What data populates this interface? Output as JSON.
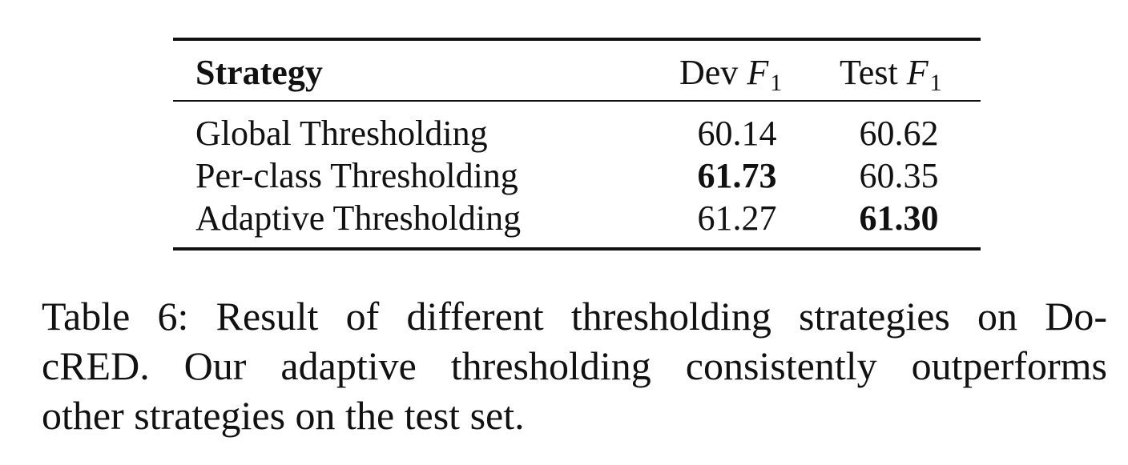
{
  "table": {
    "header": {
      "strategy": "Strategy",
      "dev_prefix": "Dev ",
      "test_prefix": "Test ",
      "f_symbol": "F",
      "f_subscript": "1"
    },
    "rows": [
      {
        "strategy": "Global Thresholding",
        "dev": "60.14",
        "test": "60.62"
      },
      {
        "strategy": "Per-class Thresholding",
        "dev": "61.73",
        "test": "60.35"
      },
      {
        "strategy": "Adaptive Thresholding",
        "dev": "61.27",
        "test": "61.30"
      }
    ]
  },
  "caption": {
    "line1": "Table 6: Result of different thresholding strategies on Do-",
    "line2": "cRED. Our adaptive thresholding consistently outperforms",
    "line3": "other strategies on the test set."
  }
}
